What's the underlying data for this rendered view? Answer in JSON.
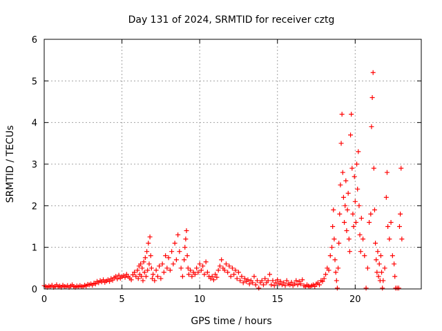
{
  "chart_data": {
    "type": "scatter",
    "title": "Day 131 of 2024, SRMTID for receiver cztg",
    "xlabel": "GPS time / hours",
    "ylabel": "SRMTID / TECUs",
    "xlim": [
      0,
      24.25
    ],
    "ylim": [
      0,
      6
    ],
    "xticks": [
      0,
      5,
      10,
      15,
      20
    ],
    "yticks": [
      0,
      1,
      2,
      3,
      4,
      5,
      6
    ],
    "xtick_labels": [
      "0",
      "5",
      "10",
      "15",
      "20"
    ],
    "ytick_labels": [
      "0",
      "1",
      "2",
      "3",
      "4",
      "5",
      "6"
    ],
    "grid": true,
    "marker": "+",
    "color": "#ff0000",
    "series": [
      {
        "name": "SRMTID",
        "points": [
          [
            0.0,
            0.08
          ],
          [
            0.1,
            0.06
          ],
          [
            0.2,
            0.04
          ],
          [
            0.3,
            0.07
          ],
          [
            0.4,
            0.05
          ],
          [
            0.5,
            0.09
          ],
          [
            0.6,
            0.04
          ],
          [
            0.7,
            0.06
          ],
          [
            0.8,
            0.1
          ],
          [
            0.9,
            0.05
          ],
          [
            1.0,
            0.07
          ],
          [
            1.1,
            0.04
          ],
          [
            1.2,
            0.09
          ],
          [
            1.3,
            0.06
          ],
          [
            1.4,
            0.05
          ],
          [
            1.5,
            0.08
          ],
          [
            1.6,
            0.04
          ],
          [
            1.7,
            0.07
          ],
          [
            1.8,
            0.1
          ],
          [
            1.9,
            0.06
          ],
          [
            2.0,
            0.04
          ],
          [
            2.1,
            0.07
          ],
          [
            2.2,
            0.05
          ],
          [
            2.3,
            0.08
          ],
          [
            2.4,
            0.06
          ],
          [
            2.5,
            0.05
          ],
          [
            2.6,
            0.09
          ],
          [
            2.7,
            0.07
          ],
          [
            2.8,
            0.11
          ],
          [
            2.9,
            0.1
          ],
          [
            3.0,
            0.12
          ],
          [
            3.1,
            0.09
          ],
          [
            3.2,
            0.14
          ],
          [
            3.3,
            0.12
          ],
          [
            3.4,
            0.18
          ],
          [
            3.5,
            0.15
          ],
          [
            3.6,
            0.2
          ],
          [
            3.7,
            0.17
          ],
          [
            3.8,
            0.22
          ],
          [
            3.9,
            0.16
          ],
          [
            4.0,
            0.19
          ],
          [
            4.1,
            0.22
          ],
          [
            4.2,
            0.18
          ],
          [
            4.3,
            0.25
          ],
          [
            4.4,
            0.21
          ],
          [
            4.5,
            0.27
          ],
          [
            4.6,
            0.3
          ],
          [
            4.7,
            0.24
          ],
          [
            4.8,
            0.33
          ],
          [
            4.9,
            0.26
          ],
          [
            5.0,
            0.29
          ],
          [
            5.1,
            0.32
          ],
          [
            5.2,
            0.28
          ],
          [
            5.3,
            0.35
          ],
          [
            5.4,
            0.3
          ],
          [
            5.5,
            0.26
          ],
          [
            5.6,
            0.22
          ],
          [
            5.7,
            0.34
          ],
          [
            5.8,
            0.4
          ],
          [
            5.9,
            0.3
          ],
          [
            6.0,
            0.45
          ],
          [
            6.05,
            0.25
          ],
          [
            6.1,
            0.55
          ],
          [
            6.15,
            0.35
          ],
          [
            6.2,
            0.6
          ],
          [
            6.25,
            0.3
          ],
          [
            6.3,
            0.5
          ],
          [
            6.35,
            0.2
          ],
          [
            6.4,
            0.65
          ],
          [
            6.45,
            0.4
          ],
          [
            6.5,
            0.75
          ],
          [
            6.55,
            0.3
          ],
          [
            6.6,
            0.9
          ],
          [
            6.65,
            0.45
          ],
          [
            6.7,
            1.1
          ],
          [
            6.75,
            0.6
          ],
          [
            6.8,
            1.25
          ],
          [
            6.85,
            0.8
          ],
          [
            6.9,
            0.5
          ],
          [
            6.95,
            0.25
          ],
          [
            7.0,
            0.35
          ],
          [
            7.1,
            0.2
          ],
          [
            7.2,
            0.45
          ],
          [
            7.3,
            0.3
          ],
          [
            7.4,
            0.55
          ],
          [
            7.5,
            0.25
          ],
          [
            7.6,
            0.6
          ],
          [
            7.7,
            0.4
          ],
          [
            7.8,
            0.8
          ],
          [
            7.9,
            0.5
          ],
          [
            8.0,
            0.75
          ],
          [
            8.1,
            0.45
          ],
          [
            8.2,
            0.9
          ],
          [
            8.3,
            0.6
          ],
          [
            8.4,
            1.1
          ],
          [
            8.5,
            0.7
          ],
          [
            8.6,
            1.3
          ],
          [
            8.7,
            0.9
          ],
          [
            8.8,
            0.5
          ],
          [
            8.9,
            0.3
          ],
          [
            9.0,
            0.7
          ],
          [
            9.05,
            1.0
          ],
          [
            9.1,
            1.2
          ],
          [
            9.15,
            1.4
          ],
          [
            9.2,
            0.8
          ],
          [
            9.25,
            0.5
          ],
          [
            9.3,
            0.35
          ],
          [
            9.4,
            0.45
          ],
          [
            9.5,
            0.3
          ],
          [
            9.6,
            0.4
          ],
          [
            9.7,
            0.35
          ],
          [
            9.8,
            0.5
          ],
          [
            9.9,
            0.4
          ],
          [
            10.0,
            0.6
          ],
          [
            10.1,
            0.45
          ],
          [
            10.2,
            0.55
          ],
          [
            10.3,
            0.35
          ],
          [
            10.4,
            0.65
          ],
          [
            10.5,
            0.4
          ],
          [
            10.6,
            0.3
          ],
          [
            10.7,
            0.25
          ],
          [
            10.8,
            0.3
          ],
          [
            10.9,
            0.22
          ],
          [
            11.0,
            0.35
          ],
          [
            11.1,
            0.28
          ],
          [
            11.2,
            0.45
          ],
          [
            11.3,
            0.55
          ],
          [
            11.4,
            0.7
          ],
          [
            11.5,
            0.5
          ],
          [
            11.6,
            0.45
          ],
          [
            11.7,
            0.6
          ],
          [
            11.8,
            0.4
          ],
          [
            11.9,
            0.55
          ],
          [
            12.0,
            0.3
          ],
          [
            12.1,
            0.5
          ],
          [
            12.2,
            0.35
          ],
          [
            12.3,
            0.45
          ],
          [
            12.4,
            0.25
          ],
          [
            12.5,
            0.4
          ],
          [
            12.6,
            0.2
          ],
          [
            12.7,
            0.3
          ],
          [
            12.8,
            0.15
          ],
          [
            12.9,
            0.25
          ],
          [
            13.0,
            0.18
          ],
          [
            13.1,
            0.22
          ],
          [
            13.2,
            0.12
          ],
          [
            13.3,
            0.2
          ],
          [
            13.4,
            0.15
          ],
          [
            13.5,
            0.3
          ],
          [
            13.6,
            0.1
          ],
          [
            13.7,
            0.2
          ],
          [
            13.8,
            0.02
          ],
          [
            13.9,
            0.15
          ],
          [
            14.0,
            0.2
          ],
          [
            14.1,
            0.1
          ],
          [
            14.2,
            0.25
          ],
          [
            14.3,
            0.15
          ],
          [
            14.4,
            0.2
          ],
          [
            14.5,
            0.35
          ],
          [
            14.6,
            0.1
          ],
          [
            14.7,
            0.2
          ],
          [
            14.8,
            0.08
          ],
          [
            14.9,
            0.15
          ],
          [
            15.0,
            0.22
          ],
          [
            15.1,
            0.12
          ],
          [
            15.2,
            0.18
          ],
          [
            15.3,
            0.1
          ],
          [
            15.4,
            0.15
          ],
          [
            15.5,
            0.08
          ],
          [
            15.6,
            0.2
          ],
          [
            15.7,
            0.12
          ],
          [
            15.8,
            0.1
          ],
          [
            15.9,
            0.16
          ],
          [
            16.0,
            0.08
          ],
          [
            16.1,
            0.12
          ],
          [
            16.2,
            0.2
          ],
          [
            16.3,
            0.1
          ],
          [
            16.4,
            0.18
          ],
          [
            16.5,
            0.12
          ],
          [
            16.6,
            0.22
          ],
          [
            16.7,
            0.08
          ],
          [
            16.8,
            0.05
          ],
          [
            16.9,
            0.1
          ],
          [
            17.0,
            0.07
          ],
          [
            17.1,
            0.05
          ],
          [
            17.2,
            0.08
          ],
          [
            17.3,
            0.1
          ],
          [
            17.4,
            0.06
          ],
          [
            17.5,
            0.12
          ],
          [
            17.6,
            0.15
          ],
          [
            17.7,
            0.1
          ],
          [
            17.8,
            0.2
          ],
          [
            17.9,
            0.18
          ],
          [
            18.0,
            0.25
          ],
          [
            18.1,
            0.35
          ],
          [
            18.2,
            0.5
          ],
          [
            18.3,
            0.45
          ],
          [
            18.4,
            0.8
          ],
          [
            18.5,
            1.0
          ],
          [
            18.55,
            1.5
          ],
          [
            18.6,
            1.9
          ],
          [
            18.65,
            1.2
          ],
          [
            18.7,
            0.7
          ],
          [
            18.75,
            0.4
          ],
          [
            18.8,
            0.2
          ],
          [
            18.85,
            0.02
          ],
          [
            18.9,
            0.5
          ],
          [
            18.95,
            1.1
          ],
          [
            19.0,
            1.8
          ],
          [
            19.05,
            2.5
          ],
          [
            19.1,
            3.5
          ],
          [
            19.15,
            4.2
          ],
          [
            19.2,
            2.8
          ],
          [
            19.25,
            2.2
          ],
          [
            19.3,
            1.6
          ],
          [
            19.35,
            2.0
          ],
          [
            19.4,
            2.6
          ],
          [
            19.45,
            1.4
          ],
          [
            19.5,
            1.9
          ],
          [
            19.55,
            2.3
          ],
          [
            19.6,
            1.2
          ],
          [
            19.65,
            0.9
          ],
          [
            19.7,
            3.7
          ],
          [
            19.75,
            4.2
          ],
          [
            19.8,
            2.9
          ],
          [
            19.85,
            1.8
          ],
          [
            19.9,
            1.5
          ],
          [
            19.95,
            2.7
          ],
          [
            20.0,
            2.1
          ],
          [
            20.05,
            1.6
          ],
          [
            20.1,
            3.0
          ],
          [
            20.15,
            2.4
          ],
          [
            20.2,
            3.3
          ],
          [
            20.25,
            2.0
          ],
          [
            20.3,
            1.3
          ],
          [
            20.35,
            0.9
          ],
          [
            20.4,
            1.7
          ],
          [
            20.5,
            1.2
          ],
          [
            20.6,
            0.8
          ],
          [
            20.7,
            0.02
          ],
          [
            20.8,
            0.5
          ],
          [
            20.9,
            1.6
          ],
          [
            21.0,
            1.8
          ],
          [
            21.05,
            3.9
          ],
          [
            21.1,
            4.6
          ],
          [
            21.15,
            5.2
          ],
          [
            21.2,
            2.9
          ],
          [
            21.25,
            1.9
          ],
          [
            21.3,
            1.1
          ],
          [
            21.35,
            0.7
          ],
          [
            21.4,
            0.4
          ],
          [
            21.45,
            0.9
          ],
          [
            21.5,
            0.3
          ],
          [
            21.55,
            0.6
          ],
          [
            21.6,
            0.2
          ],
          [
            21.65,
            0.8
          ],
          [
            21.7,
            0.4
          ],
          [
            21.75,
            0.02
          ],
          [
            21.8,
            0.2
          ],
          [
            21.9,
            0.5
          ],
          [
            22.0,
            2.2
          ],
          [
            22.05,
            2.8
          ],
          [
            22.1,
            1.5
          ],
          [
            22.2,
            1.2
          ],
          [
            22.3,
            1.6
          ],
          [
            22.4,
            0.8
          ],
          [
            22.5,
            0.6
          ],
          [
            22.55,
            0.3
          ],
          [
            22.6,
            0.02
          ],
          [
            22.7,
            0.02
          ],
          [
            22.8,
            0.02
          ],
          [
            22.85,
            1.5
          ],
          [
            22.9,
            1.8
          ],
          [
            22.95,
            2.9
          ],
          [
            23.0,
            1.2
          ]
        ]
      }
    ]
  }
}
